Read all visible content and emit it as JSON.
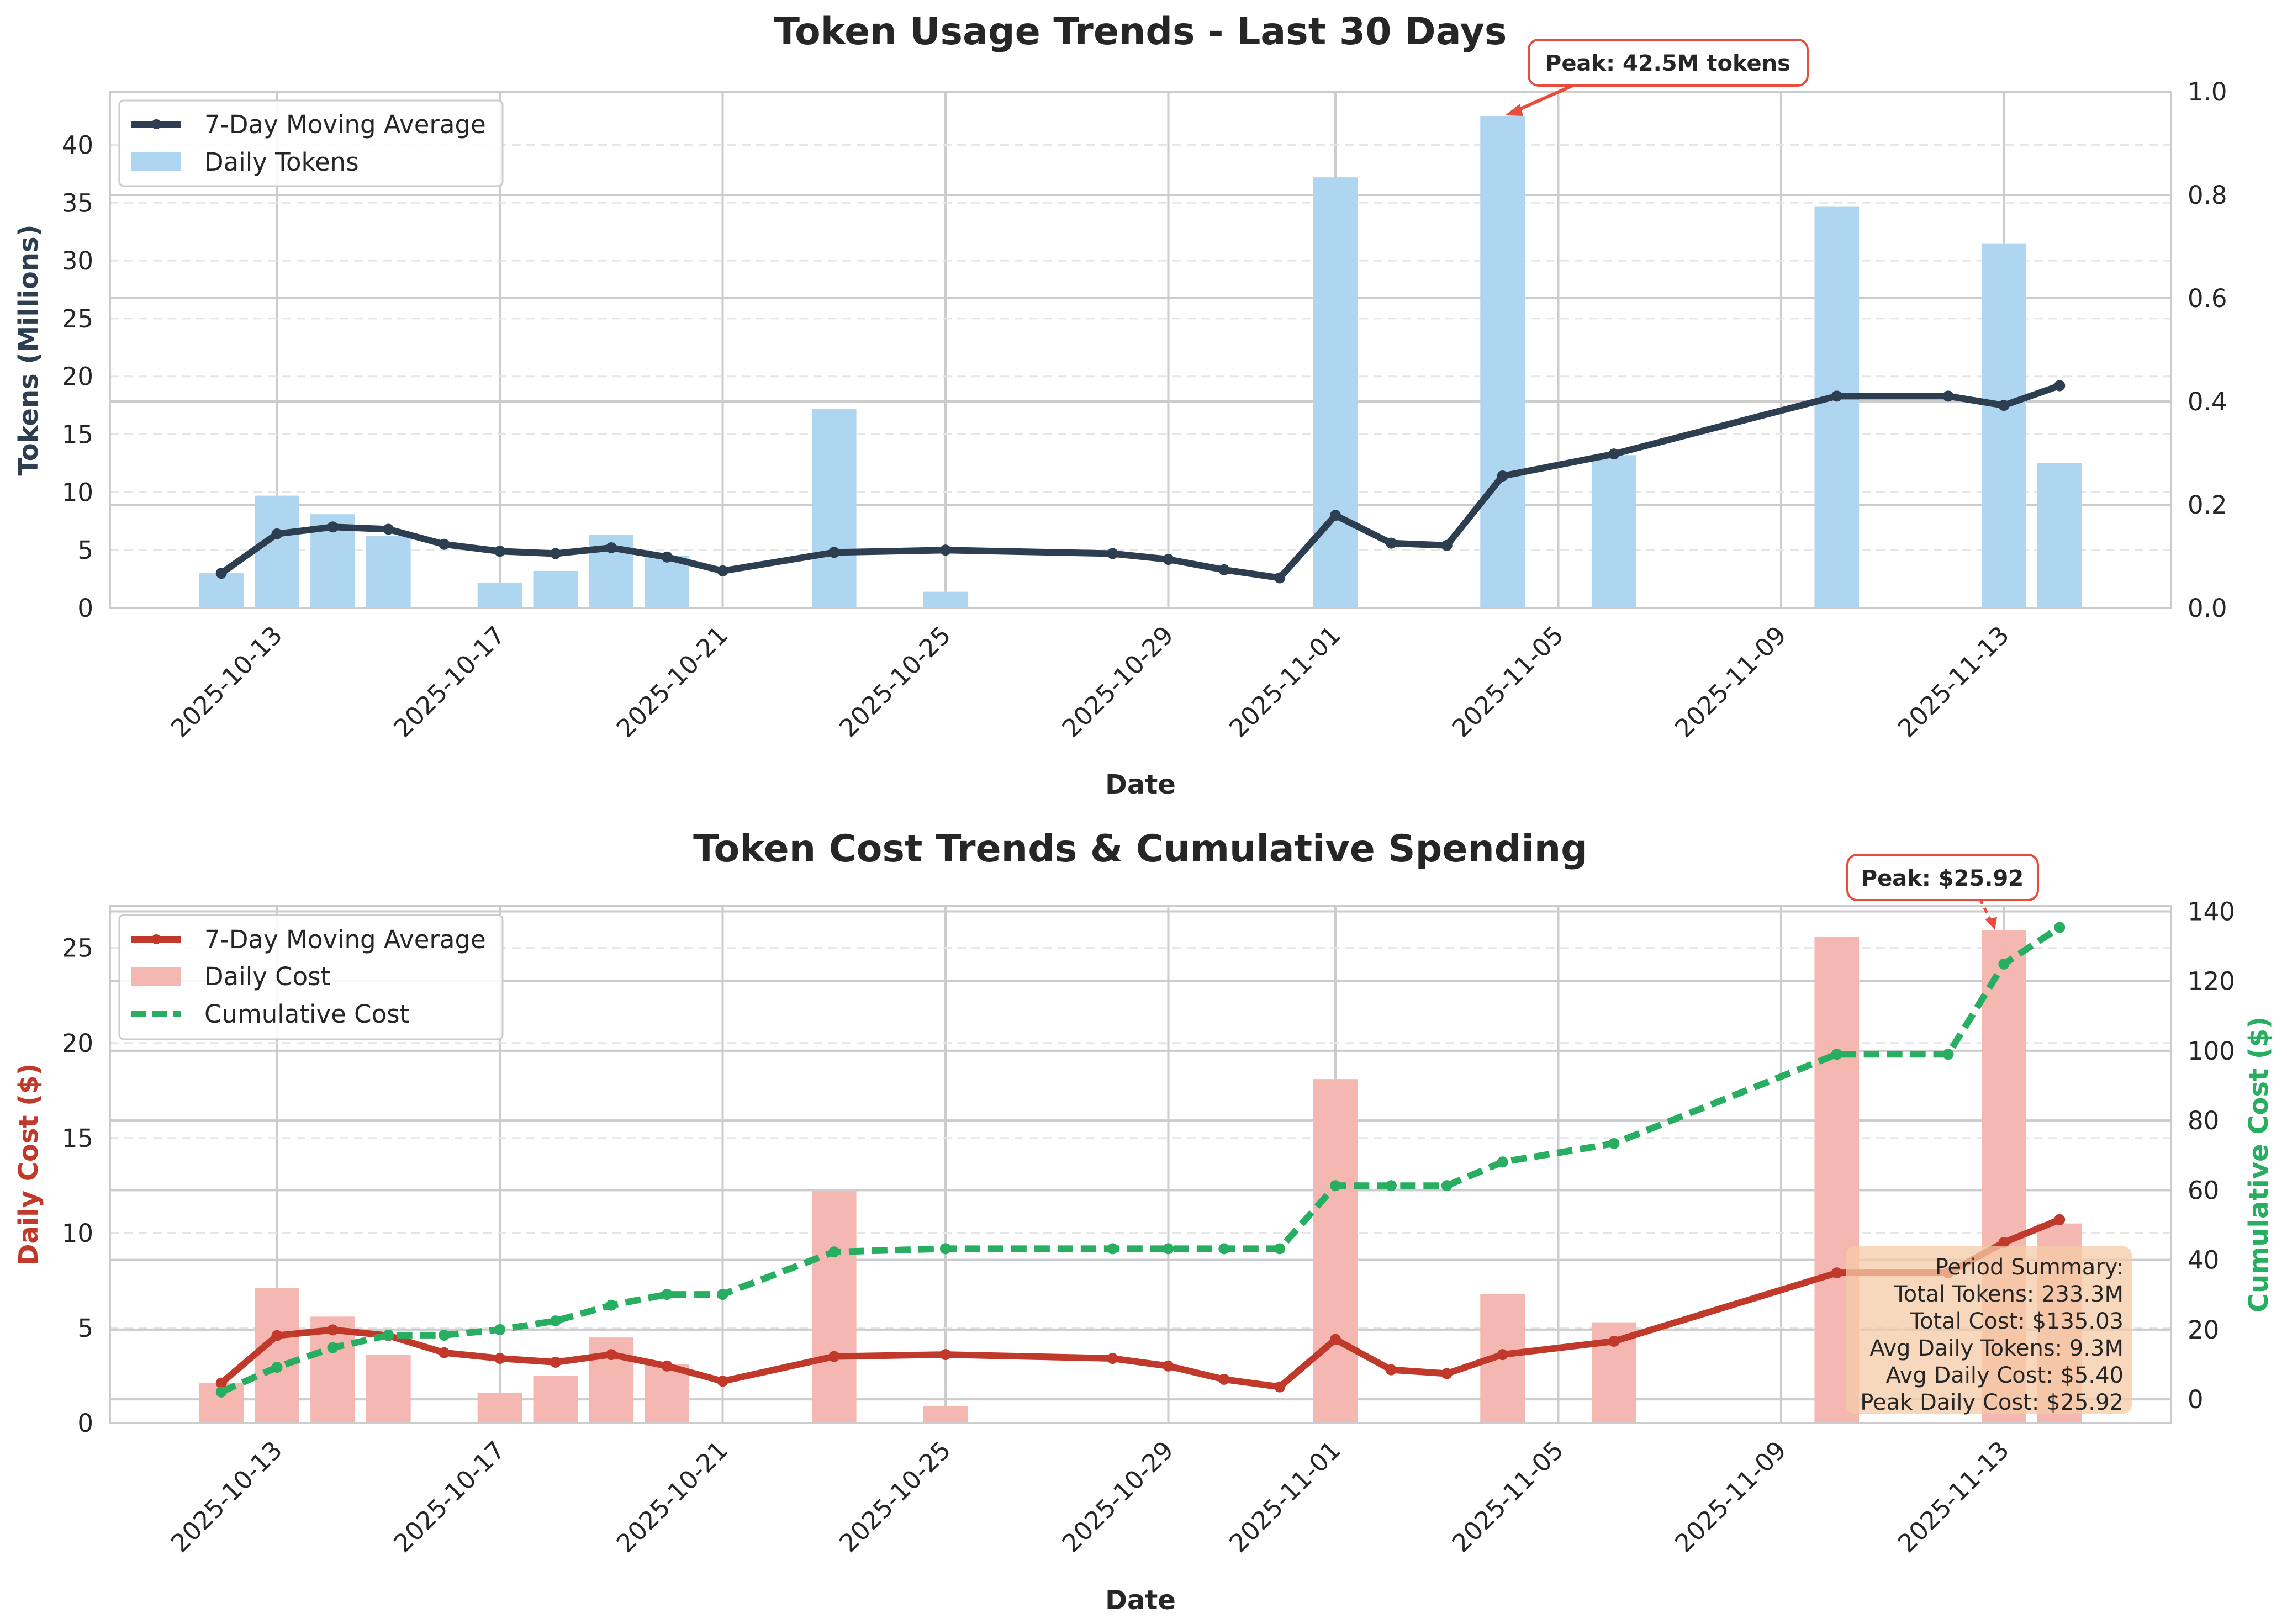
{
  "chart_data": [
    {
      "type": "bar",
      "title": "Token Usage Trends - Last 30 Days",
      "xlabel": "Date",
      "ylabel": "Tokens (Millions)",
      "ylim": [
        0,
        44.6
      ],
      "yticks": [
        0,
        5,
        10,
        15,
        20,
        25,
        30,
        35,
        40
      ],
      "y2lim": [
        0,
        1.0
      ],
      "y2ticks": [
        "0.0",
        "0.2",
        "0.4",
        "0.6",
        "0.8",
        "1.0"
      ],
      "xlim": [
        "2025-10-10",
        "2025-11-16"
      ],
      "xticks": [
        "2025-10-13",
        "2025-10-17",
        "2025-10-21",
        "2025-10-25",
        "2025-10-29",
        "2025-11-01",
        "2025-11-05",
        "2025-11-09",
        "2025-11-13"
      ],
      "grid": true,
      "legend_position": "top-left",
      "series": [
        {
          "name": "Daily Tokens",
          "kind": "bar",
          "color": "#aed6f1",
          "x": [
            "2025-10-12",
            "2025-10-13",
            "2025-10-14",
            "2025-10-15",
            "2025-10-17",
            "2025-10-18",
            "2025-10-19",
            "2025-10-20",
            "2025-10-23",
            "2025-10-25",
            "2025-11-01",
            "2025-11-04",
            "2025-11-06",
            "2025-11-10",
            "2025-11-13",
            "2025-11-14"
          ],
          "values": [
            3.0,
            9.7,
            8.1,
            6.2,
            2.2,
            3.2,
            6.3,
            4.5,
            17.2,
            1.4,
            37.2,
            42.5,
            13.2,
            34.7,
            31.5,
            12.5
          ]
        },
        {
          "name": "7-Day Moving Average",
          "kind": "line",
          "color": "#2c3e50",
          "x": [
            "2025-10-12",
            "2025-10-13",
            "2025-10-14",
            "2025-10-15",
            "2025-10-16",
            "2025-10-17",
            "2025-10-18",
            "2025-10-19",
            "2025-10-20",
            "2025-10-21",
            "2025-10-23",
            "2025-10-25",
            "2025-10-28",
            "2025-10-29",
            "2025-10-30",
            "2025-10-31",
            "2025-11-01",
            "2025-11-02",
            "2025-11-03",
            "2025-11-04",
            "2025-11-06",
            "2025-11-10",
            "2025-11-12",
            "2025-11-13",
            "2025-11-14"
          ],
          "values": [
            3.0,
            6.4,
            7.0,
            6.8,
            5.5,
            4.9,
            4.7,
            5.2,
            4.4,
            3.2,
            4.8,
            5.0,
            4.7,
            4.2,
            3.3,
            2.6,
            8.0,
            5.6,
            5.4,
            11.4,
            13.3,
            18.3,
            18.3,
            17.5,
            19.2
          ]
        }
      ],
      "annotations": [
        {
          "text": "Peak: 42.5M tokens",
          "x": "2025-11-04",
          "y": 42.5
        }
      ]
    },
    {
      "type": "bar",
      "title": "Token Cost Trends & Cumulative Spending",
      "xlabel": "Date",
      "ylabel": "Daily Cost ($)",
      "ylim": [
        0,
        27.2
      ],
      "yticks": [
        0,
        5,
        10,
        15,
        20,
        25
      ],
      "y2label": "Cumulative Cost ($)",
      "y2lim": [
        -6.8,
        141.5
      ],
      "y2ticks": [
        0,
        20,
        40,
        60,
        80,
        100,
        120,
        140
      ],
      "xlim": [
        "2025-10-10",
        "2025-11-16"
      ],
      "xticks": [
        "2025-10-13",
        "2025-10-17",
        "2025-10-21",
        "2025-10-25",
        "2025-10-29",
        "2025-11-01",
        "2025-11-05",
        "2025-11-09",
        "2025-11-13"
      ],
      "grid": true,
      "legend_position": "top-left",
      "series": [
        {
          "name": "Daily Cost",
          "kind": "bar",
          "color": "#f5b7b1",
          "x": [
            "2025-10-12",
            "2025-10-13",
            "2025-10-14",
            "2025-10-15",
            "2025-10-17",
            "2025-10-18",
            "2025-10-19",
            "2025-10-20",
            "2025-10-23",
            "2025-10-25",
            "2025-11-01",
            "2025-11-04",
            "2025-11-06",
            "2025-11-10",
            "2025-11-13",
            "2025-11-14"
          ],
          "values": [
            2.1,
            7.1,
            5.6,
            3.6,
            1.6,
            2.5,
            4.5,
            3.1,
            12.2,
            0.9,
            18.1,
            6.8,
            5.3,
            25.6,
            25.92,
            10.5
          ]
        },
        {
          "name": "7-Day Moving Average",
          "kind": "line",
          "axis": "left",
          "color": "#c0392b",
          "x": [
            "2025-10-12",
            "2025-10-13",
            "2025-10-14",
            "2025-10-15",
            "2025-10-16",
            "2025-10-17",
            "2025-10-18",
            "2025-10-19",
            "2025-10-20",
            "2025-10-21",
            "2025-10-23",
            "2025-10-25",
            "2025-10-28",
            "2025-10-29",
            "2025-10-30",
            "2025-10-31",
            "2025-11-01",
            "2025-11-02",
            "2025-11-03",
            "2025-11-04",
            "2025-11-06",
            "2025-11-10",
            "2025-11-12",
            "2025-11-13",
            "2025-11-14"
          ],
          "values": [
            2.1,
            4.6,
            4.9,
            4.6,
            3.7,
            3.4,
            3.2,
            3.6,
            3.0,
            2.2,
            3.5,
            3.6,
            3.4,
            3.0,
            2.3,
            1.9,
            4.4,
            2.8,
            2.6,
            3.6,
            4.3,
            7.9,
            7.9,
            9.5,
            10.7
          ]
        },
        {
          "name": "Cumulative Cost",
          "kind": "line",
          "axis": "right",
          "color": "#27ae60",
          "x": [
            "2025-10-12",
            "2025-10-13",
            "2025-10-14",
            "2025-10-15",
            "2025-10-16",
            "2025-10-17",
            "2025-10-18",
            "2025-10-19",
            "2025-10-20",
            "2025-10-21",
            "2025-10-23",
            "2025-10-25",
            "2025-10-28",
            "2025-10-29",
            "2025-10-30",
            "2025-10-31",
            "2025-11-01",
            "2025-11-02",
            "2025-11-03",
            "2025-11-04",
            "2025-11-06",
            "2025-11-10",
            "2025-11-12",
            "2025-11-13",
            "2025-11-14"
          ],
          "values": [
            2.1,
            9.2,
            14.8,
            18.4,
            18.4,
            20.0,
            22.5,
            27.0,
            30.1,
            30.1,
            42.3,
            43.2,
            43.2,
            43.2,
            43.2,
            43.2,
            61.3,
            61.3,
            61.3,
            68.1,
            73.4,
            99.0,
            99.0,
            124.9,
            135.4
          ]
        }
      ],
      "annotations": [
        {
          "text": "Peak: $25.92",
          "x": "2025-11-13",
          "y": 25.92
        }
      ],
      "summary": {
        "heading": "Period Summary:",
        "lines": [
          "Total Tokens: 233.3M",
          "Total Cost: $135.03",
          "Avg Daily Tokens: 9.3M",
          "Avg Daily Cost: $5.40",
          "Peak Daily Cost: $25.92"
        ]
      }
    }
  ]
}
